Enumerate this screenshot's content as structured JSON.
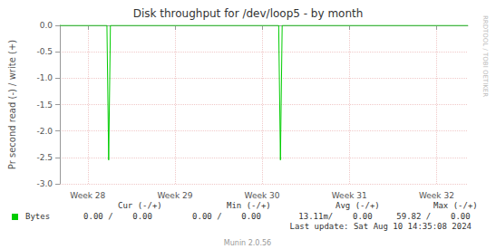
{
  "chart_data": {
    "type": "line",
    "title": "Disk throughput for /dev/loop5 - by month",
    "y_label": "Pr second read (-) / write (+)",
    "x": [
      27.68,
      28.22,
      28.24,
      28.26,
      30.19,
      30.21,
      30.23,
      32.36
    ],
    "series": [
      {
        "name": "Bytes",
        "color": "#00cc00",
        "values": [
          0,
          0,
          -2.55,
          0,
          0,
          -2.55,
          0,
          0
        ]
      }
    ],
    "xlim": [
      27.68,
      32.36
    ],
    "xticks": [
      {
        "value": 28,
        "label": "Week 28"
      },
      {
        "value": 29,
        "label": "Week 29"
      },
      {
        "value": 30,
        "label": "Week 30"
      },
      {
        "value": 31,
        "label": "Week 31"
      },
      {
        "value": 32,
        "label": "Week 32"
      }
    ],
    "ylim": [
      -3.0,
      0.0
    ],
    "yticks": [
      {
        "value": -3.0,
        "label": "-3.0"
      },
      {
        "value": -2.5,
        "label": "-2.5"
      },
      {
        "value": -2.0,
        "label": "-2.0"
      },
      {
        "value": -1.5,
        "label": "-1.5"
      },
      {
        "value": -1.0,
        "label": "-1.0"
      },
      {
        "value": -0.5,
        "label": "-0.5"
      },
      {
        "value": 0.0,
        "label": "0.0"
      }
    ],
    "grid": true,
    "annotations": {
      "columns": [
        "Cur (-/+)",
        "Min (-/+)",
        "Avg (-/+)",
        "Max (-/+)"
      ],
      "cells": [
        "0.00 /    0.00",
        "0.00 /    0.00",
        "13.11m/    0.00",
        "59.82 /    0.00"
      ],
      "last_update": "Last update: Sat Aug 10 14:35:08 2024",
      "footer": "Munin 2.0.56",
      "watermark": "RRDTOOL / TOBI OETIKER"
    }
  }
}
